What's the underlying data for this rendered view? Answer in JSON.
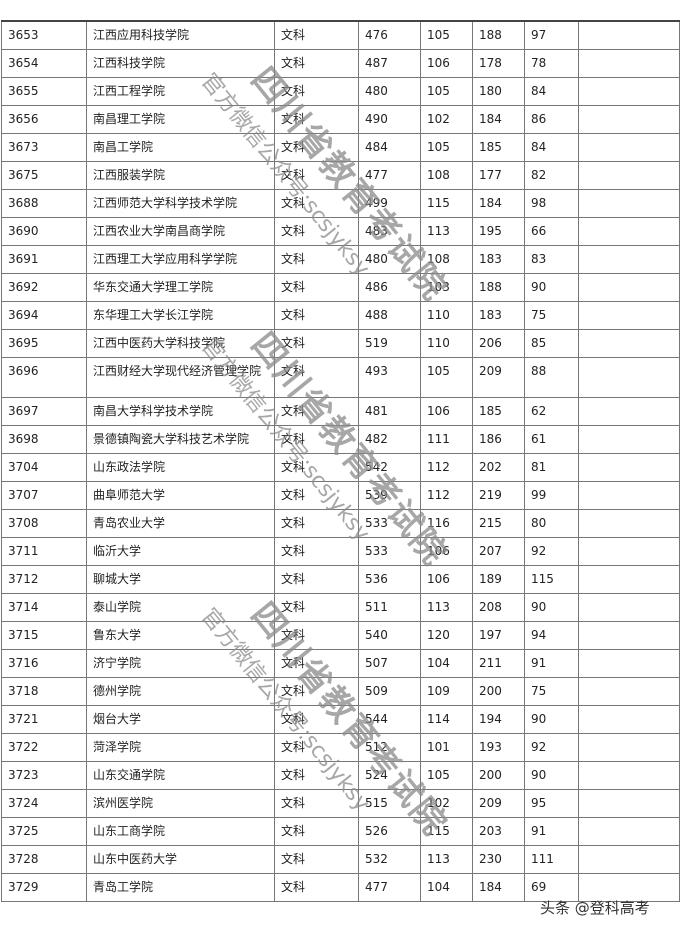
{
  "rows": [
    [
      "3653",
      "江西应用科技学院",
      "文科",
      "476",
      "105",
      "188",
      "97",
      ""
    ],
    [
      "3654",
      "江西科技学院",
      "文科",
      "487",
      "106",
      "178",
      "78",
      ""
    ],
    [
      "3655",
      "江西工程学院",
      "文科",
      "480",
      "105",
      "180",
      "84",
      ""
    ],
    [
      "3656",
      "南昌理工学院",
      "文科",
      "490",
      "102",
      "184",
      "86",
      ""
    ],
    [
      "3673",
      "南昌工学院",
      "文科",
      "484",
      "105",
      "185",
      "84",
      ""
    ],
    [
      "3675",
      "江西服装学院",
      "文科",
      "477",
      "108",
      "177",
      "82",
      ""
    ],
    [
      "3688",
      "江西师范大学科学技术学院",
      "文科",
      "499",
      "115",
      "184",
      "98",
      ""
    ],
    [
      "3690",
      "江西农业大学南昌商学院",
      "文科",
      "483",
      "113",
      "195",
      "66",
      ""
    ],
    [
      "3691",
      "江西理工大学应用科学学院",
      "文科",
      "480",
      "108",
      "183",
      "83",
      ""
    ],
    [
      "3692",
      "华东交通大学理工学院",
      "文科",
      "486",
      "103",
      "188",
      "90",
      ""
    ],
    [
      "3694",
      "东华理工大学长江学院",
      "文科",
      "488",
      "110",
      "183",
      "75",
      ""
    ],
    [
      "3695",
      "江西中医药大学科技学院",
      "文科",
      "519",
      "110",
      "206",
      "85",
      ""
    ],
    [
      "3696",
      "江西财经大学现代经济管理学院",
      "文科",
      "493",
      "105",
      "209",
      "88",
      ""
    ],
    [
      "3697",
      "南昌大学科学技术学院",
      "文科",
      "481",
      "106",
      "185",
      "62",
      ""
    ],
    [
      "3698",
      "景德镇陶瓷大学科技艺术学院",
      "文科",
      "482",
      "111",
      "186",
      "61",
      ""
    ],
    [
      "3704",
      "山东政法学院",
      "文科",
      "542",
      "112",
      "202",
      "81",
      ""
    ],
    [
      "3707",
      "曲阜师范大学",
      "文科",
      "539",
      "112",
      "219",
      "99",
      ""
    ],
    [
      "3708",
      "青岛农业大学",
      "文科",
      "533",
      "116",
      "215",
      "80",
      ""
    ],
    [
      "3711",
      "临沂大学",
      "文科",
      "533",
      "106",
      "207",
      "92",
      ""
    ],
    [
      "3712",
      "聊城大学",
      "文科",
      "536",
      "106",
      "189",
      "115",
      ""
    ],
    [
      "3714",
      "泰山学院",
      "文科",
      "511",
      "113",
      "208",
      "90",
      ""
    ],
    [
      "3715",
      "鲁东大学",
      "文科",
      "540",
      "120",
      "197",
      "94",
      ""
    ],
    [
      "3716",
      "济宁学院",
      "文科",
      "507",
      "104",
      "211",
      "91",
      ""
    ],
    [
      "3718",
      "德州学院",
      "文科",
      "509",
      "109",
      "200",
      "75",
      ""
    ],
    [
      "3721",
      "烟台大学",
      "文科",
      "544",
      "114",
      "194",
      "90",
      ""
    ],
    [
      "3722",
      "菏泽学院",
      "文科",
      "512",
      "101",
      "193",
      "92",
      ""
    ],
    [
      "3723",
      "山东交通学院",
      "文科",
      "524",
      "105",
      "200",
      "90",
      ""
    ],
    [
      "3724",
      "滨州医学院",
      "文科",
      "515",
      "102",
      "209",
      "95",
      ""
    ],
    [
      "3725",
      "山东工商学院",
      "文科",
      "526",
      "115",
      "203",
      "91",
      ""
    ],
    [
      "3728",
      "山东中医药大学",
      "文科",
      "532",
      "113",
      "230",
      "111",
      ""
    ],
    [
      "3729",
      "青岛工学院",
      "文科",
      "477",
      "104",
      "184",
      "69",
      ""
    ]
  ],
  "watermark": {
    "line1": "四川省教育考试院",
    "line2": "官方微信公众号:scsjyksy"
  },
  "footer": "头条 @登科高考"
}
